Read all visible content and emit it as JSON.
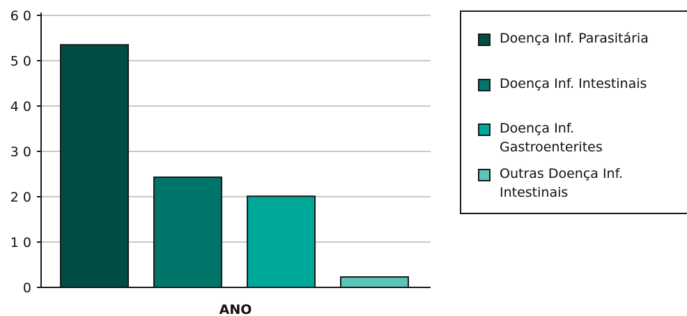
{
  "chart_data": {
    "type": "bar",
    "title": "",
    "xlabel": "ANO",
    "ylabel": "",
    "ylim": [
      0,
      60
    ],
    "yticks": [
      "0",
      "1 0",
      "2 0",
      "3 0",
      "4 0",
      "5 0",
      "6 0"
    ],
    "ytick_values": [
      0,
      10,
      20,
      30,
      40,
      50,
      60
    ],
    "grid": "horizontal",
    "legend_position": "right",
    "series": [
      {
        "name": "Doença Inf. Parasitária",
        "values": [
          53.5
        ],
        "color": "#004d44"
      },
      {
        "name": "Doença Inf. Intestinais",
        "values": [
          24.3
        ],
        "color": "#00756a"
      },
      {
        "name": "Doença Inf.\nGastroenterites",
        "values": [
          20.1
        ],
        "color": "#00a89a"
      },
      {
        "name": "Outras Doença Inf.\nIntestinais",
        "values": [
          2.3
        ],
        "color": "#5cc4b9"
      }
    ]
  }
}
